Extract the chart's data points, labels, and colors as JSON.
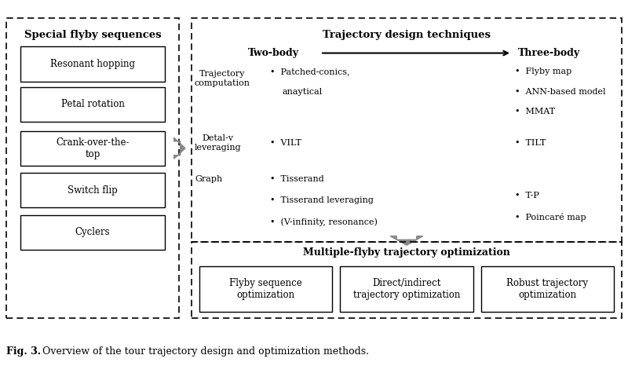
{
  "fig_width": 8.0,
  "fig_height": 4.66,
  "dpi": 100,
  "bg_color": "#ffffff",
  "left_title": "Special flyby sequences",
  "left_boxes": [
    "Resonant hopping",
    "Petal rotation",
    "Crank-over-the-\ntop",
    "Switch flip",
    "Cyclers"
  ],
  "right_title": "Trajectory design techniques",
  "two_body_label": "Two-body",
  "three_body_label": "Three-body",
  "categories": [
    "Trajectory\ncomputation",
    "Detal-v\nleveraging",
    "Graph"
  ],
  "two_body_items": [
    [
      "Patched-conics,",
      "anaytical"
    ],
    [
      "VILT"
    ],
    [
      "Tisserand",
      "Tisserand leveraging",
      "(V-infinity, resonance)"
    ]
  ],
  "three_body_items": [
    [
      "Flyby map",
      "ANN-based model",
      "MMAT"
    ],
    [
      "TILT"
    ],
    [
      "T-P",
      "Poincaré map"
    ]
  ],
  "bottom_title": "Multiple-flyby trajectory optimization",
  "bottom_boxes": [
    "Flyby sequence\noptimization",
    "Direct/indirect\ntrajectory optimization",
    "Robust trajectory\noptimization"
  ],
  "caption_bold": "Fig. 3.",
  "caption_normal": "Overview of the tour trajectory design and optimization methods."
}
